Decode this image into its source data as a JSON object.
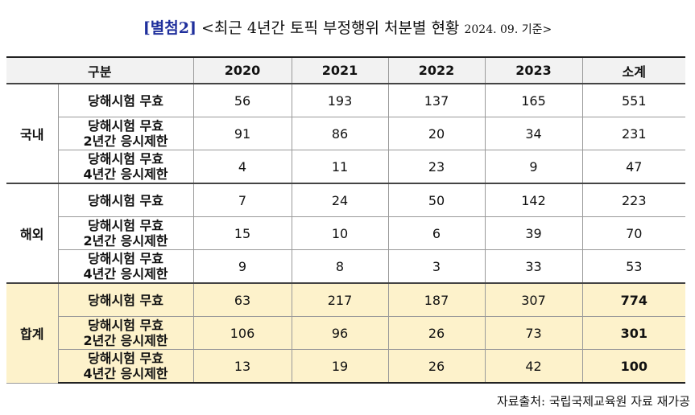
{
  "title": {
    "tag": "[별첨2]",
    "text": "<최근 4년간 토픽 부정행위 처분별 현황",
    "date": "2024. 09. 기준>"
  },
  "table": {
    "header": [
      "구분",
      "2020",
      "2021",
      "2022",
      "2023",
      "소계"
    ],
    "groups": [
      {
        "name": "국내",
        "rows": [
          {
            "label": "당해시험 무효",
            "values": [
              56,
              193,
              137,
              165,
              551
            ]
          },
          {
            "label": "당해시험 무효\n2년간 응시제한",
            "values": [
              91,
              86,
              20,
              34,
              231
            ]
          },
          {
            "label": "당해시험 무효\n4년간 응시제한",
            "values": [
              4,
              11,
              23,
              9,
              47
            ]
          }
        ]
      },
      {
        "name": "해외",
        "rows": [
          {
            "label": "당해시험 무효",
            "values": [
              7,
              24,
              50,
              142,
              223
            ]
          },
          {
            "label": "당해시험 무효\n2년간 응시제한",
            "values": [
              15,
              10,
              6,
              39,
              70
            ]
          },
          {
            "label": "당해시험 무효\n4년간 응시제한",
            "values": [
              9,
              8,
              3,
              33,
              53
            ]
          }
        ]
      },
      {
        "name": "합계",
        "rows": [
          {
            "label": "당해시험 무효",
            "values": [
              63,
              217,
              187,
              307,
              774
            ]
          },
          {
            "label": "당해시험 무효\n2년간 응시제한",
            "values": [
              106,
              96,
              26,
              73,
              301
            ]
          },
          {
            "label": "당해시험 무효\n4년간 응시제한",
            "values": [
              13,
              19,
              26,
              42,
              100
            ]
          }
        ]
      }
    ]
  },
  "source": "자료출처: 국립국제교육원 자료 재가공"
}
